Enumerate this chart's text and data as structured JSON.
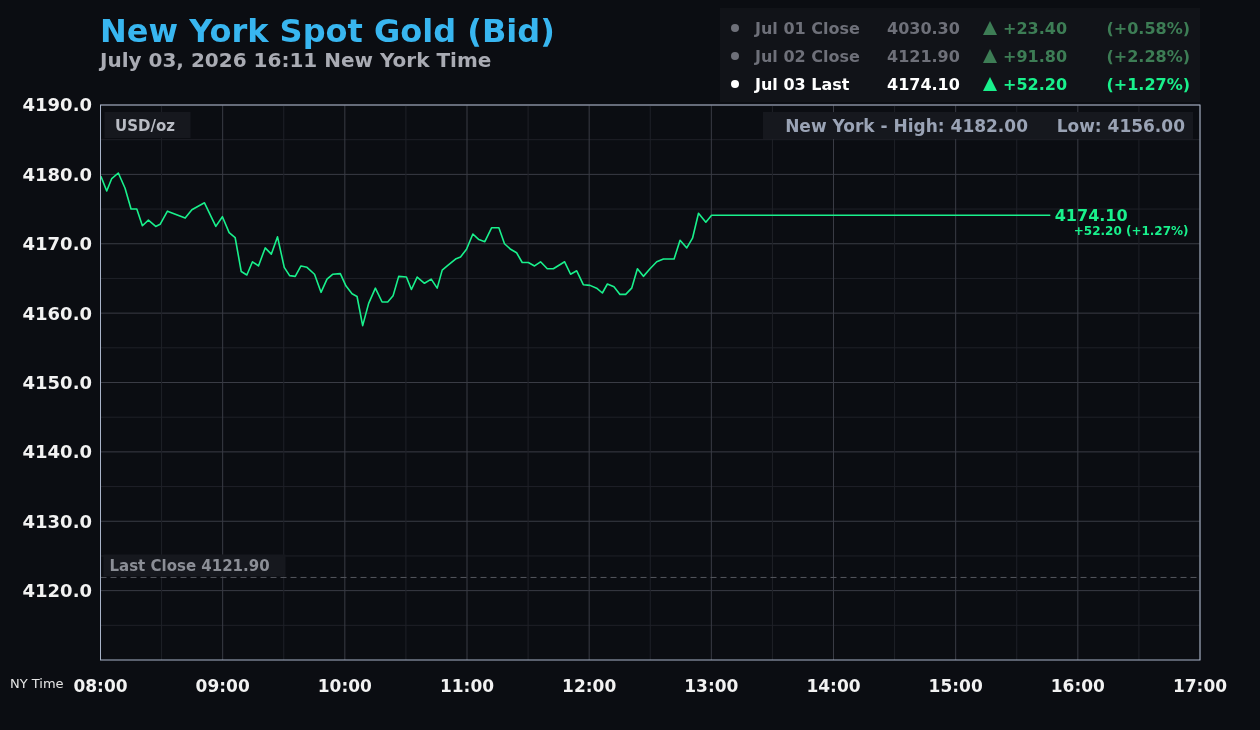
{
  "chart_data": {
    "type": "line",
    "title": "New York Spot Gold (Bid)",
    "subtitle": "July 03, 2026 16:11 New York Time",
    "xlabel": "NY Time",
    "ylabel": "USD/oz",
    "x": [
      8.004,
      8.051,
      8.092,
      8.146,
      8.201,
      8.25,
      8.297,
      8.343,
      8.392,
      8.452,
      8.488,
      8.548,
      8.693,
      8.748,
      8.851,
      8.944,
      8.998,
      9.053,
      9.102,
      9.152,
      9.198,
      9.244,
      9.293,
      9.348,
      9.398,
      9.449,
      9.504,
      9.548,
      9.594,
      9.641,
      9.69,
      9.752,
      9.805,
      9.854,
      9.9,
      9.963,
      10.01,
      10.059,
      10.1,
      10.146,
      10.195,
      10.25,
      10.305,
      10.351,
      10.395,
      10.441,
      10.504,
      10.545,
      10.592,
      10.652,
      10.707,
      10.756,
      10.797,
      10.838,
      10.906,
      10.947,
      10.996,
      11.048,
      11.097,
      11.146,
      11.201,
      11.261,
      11.307,
      11.357,
      11.406,
      11.452,
      11.502,
      11.553,
      11.602,
      11.657,
      11.707,
      11.799,
      11.848,
      11.898,
      11.952,
      12.007,
      12.061,
      12.108,
      12.149,
      12.203,
      12.252,
      12.299,
      12.348,
      12.395,
      12.444,
      12.498,
      12.553,
      12.608,
      12.695,
      12.744,
      12.799,
      12.846,
      12.895,
      12.955,
      13.002,
      15.77
    ],
    "series": [
      {
        "color": "#19f08c",
        "values": [
          4179.7,
          4177.6,
          4179.4,
          4180.2,
          4178.0,
          4175.0,
          4175.0,
          4172.6,
          4173.4,
          4172.5,
          4172.8,
          4174.7,
          4173.7,
          4174.9,
          4175.9,
          4172.5,
          4173.9,
          4171.6,
          4170.9,
          4166.0,
          4165.5,
          4167.4,
          4166.8,
          4169.4,
          4168.5,
          4171.0,
          4166.6,
          4165.4,
          4165.3,
          4166.8,
          4166.6,
          4165.6,
          4163.0,
          4164.9,
          4165.6,
          4165.7,
          4163.9,
          4162.8,
          4162.4,
          4158.2,
          4161.4,
          4163.6,
          4161.6,
          4161.6,
          4162.5,
          4165.3,
          4165.2,
          4163.4,
          4165.2,
          4164.3,
          4164.9,
          4163.6,
          4166.2,
          4166.8,
          4167.8,
          4168.1,
          4169.2,
          4171.4,
          4170.6,
          4170.3,
          4172.3,
          4172.3,
          4170.0,
          4169.2,
          4168.7,
          4167.3,
          4167.3,
          4166.8,
          4167.4,
          4166.4,
          4166.4,
          4167.4,
          4165.6,
          4166.1,
          4164.1,
          4164.0,
          4163.6,
          4162.9,
          4164.2,
          4163.8,
          4162.7,
          4162.7,
          4163.6,
          4166.4,
          4165.3,
          4166.4,
          4167.4,
          4167.8,
          4167.8,
          4170.5,
          4169.4,
          4170.8,
          4174.4,
          4173.1,
          4174.1,
          4174.1
        ]
      }
    ],
    "xlim": [
      8,
      17
    ],
    "xticks": [
      {
        "value": 8,
        "label": "08:00"
      },
      {
        "value": 8.5,
        "label": null
      },
      {
        "value": 9,
        "label": "09:00"
      },
      {
        "value": 9.5,
        "label": null
      },
      {
        "value": 10,
        "label": "10:00"
      },
      {
        "value": 10.5,
        "label": null
      },
      {
        "value": 11,
        "label": "11:00"
      },
      {
        "value": 11.5,
        "label": null
      },
      {
        "value": 12,
        "label": "12:00"
      },
      {
        "value": 12.5,
        "label": null
      },
      {
        "value": 13,
        "label": "13:00"
      },
      {
        "value": 13.5,
        "label": null
      },
      {
        "value": 14,
        "label": "14:00"
      },
      {
        "value": 14.5,
        "label": null
      },
      {
        "value": 15,
        "label": "15:00"
      },
      {
        "value": 15.5,
        "label": null
      },
      {
        "value": 16,
        "label": "16:00"
      },
      {
        "value": 16.5,
        "label": null
      },
      {
        "value": 17,
        "label": "17:00"
      }
    ],
    "ylim": [
      4110,
      4190
    ],
    "yticks": [
      {
        "value": 4115,
        "label": null
      },
      {
        "value": 4120,
        "label": "4120.0"
      },
      {
        "value": 4125,
        "label": null
      },
      {
        "value": 4130,
        "label": "4130.0"
      },
      {
        "value": 4135,
        "label": null
      },
      {
        "value": 4140,
        "label": "4140.0"
      },
      {
        "value": 4145,
        "label": null
      },
      {
        "value": 4150,
        "label": "4150.0"
      },
      {
        "value": 4155,
        "label": null
      },
      {
        "value": 4160,
        "label": "4160.0"
      },
      {
        "value": 4165,
        "label": null
      },
      {
        "value": 4170,
        "label": "4170.0"
      },
      {
        "value": 4175,
        "label": null
      },
      {
        "value": 4180,
        "label": "4180.0"
      },
      {
        "value": 4185,
        "label": null
      },
      {
        "value": 4190,
        "label": "4190.0"
      }
    ],
    "grid": true,
    "ref_lines": [
      {
        "axis": "y",
        "value": 4121.9,
        "label": "Last Close 4121.90",
        "color": "#55585f",
        "line_style": "dashed"
      }
    ],
    "annotations": [
      "Jul 01 Close",
      "4030.30",
      "+23.40",
      "(+0.58%)",
      "Jul 02 Close",
      "4121.90",
      "+91.80",
      "(+2.28%)",
      "Jul 03 Last",
      "4174.10",
      "+52.20",
      "(+1.27%)",
      "New York - High: 4182.00",
      "Low: 4156.00",
      {
        "text": "4174.10",
        "x": 15.77,
        "y": 4174.1
      },
      {
        "text": "+52.20 (+1.27%)",
        "x": 15.77,
        "y": 4174.1
      }
    ]
  }
}
